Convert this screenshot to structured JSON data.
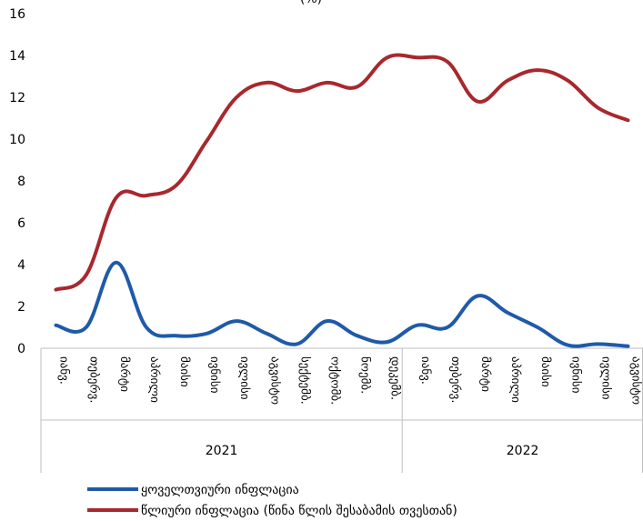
{
  "chart_data": {
    "type": "line",
    "title": "(%)",
    "ylim": [
      0,
      16
    ],
    "yticks": [
      0,
      2,
      4,
      6,
      8,
      10,
      12,
      14,
      16
    ],
    "grid": false,
    "legend_position": "bottom",
    "categories": [
      "იანვ.",
      "თებერვ.",
      "მარტი",
      "აპრილი",
      "მაისი",
      "ივნისი",
      "ივლისი",
      "აგვისტო",
      "სექტემბ.",
      "ოქტომბ.",
      "ნოემბ.",
      "დეკემბ.",
      "იანვ.",
      "თებერვ.",
      "მარტი",
      "აპრილი",
      "მაისი",
      "ივნისი",
      "ივლისი",
      "აგვისტო"
    ],
    "groups": [
      {
        "label": "2021",
        "start": 0,
        "end": 11
      },
      {
        "label": "2022",
        "start": 12,
        "end": 19
      }
    ],
    "series": [
      {
        "name": "ყოველთვიური ინფლაცია",
        "color": "#1f5aa8",
        "values": [
          1.1,
          1.0,
          4.1,
          1.0,
          0.6,
          0.7,
          1.3,
          0.7,
          0.2,
          1.3,
          0.6,
          0.3,
          1.1,
          1.0,
          2.5,
          1.7,
          1.0,
          0.15,
          0.2,
          0.1
        ]
      },
      {
        "name": "წლიური ინფლაცია (წინა წლის შესაბამის თვესთან)",
        "color": "#a8282d",
        "values": [
          2.8,
          3.5,
          7.2,
          7.3,
          7.8,
          9.9,
          12.0,
          12.7,
          12.3,
          12.7,
          12.5,
          13.9,
          13.9,
          13.7,
          11.8,
          12.8,
          13.3,
          12.8,
          11.5,
          10.9
        ]
      }
    ]
  }
}
